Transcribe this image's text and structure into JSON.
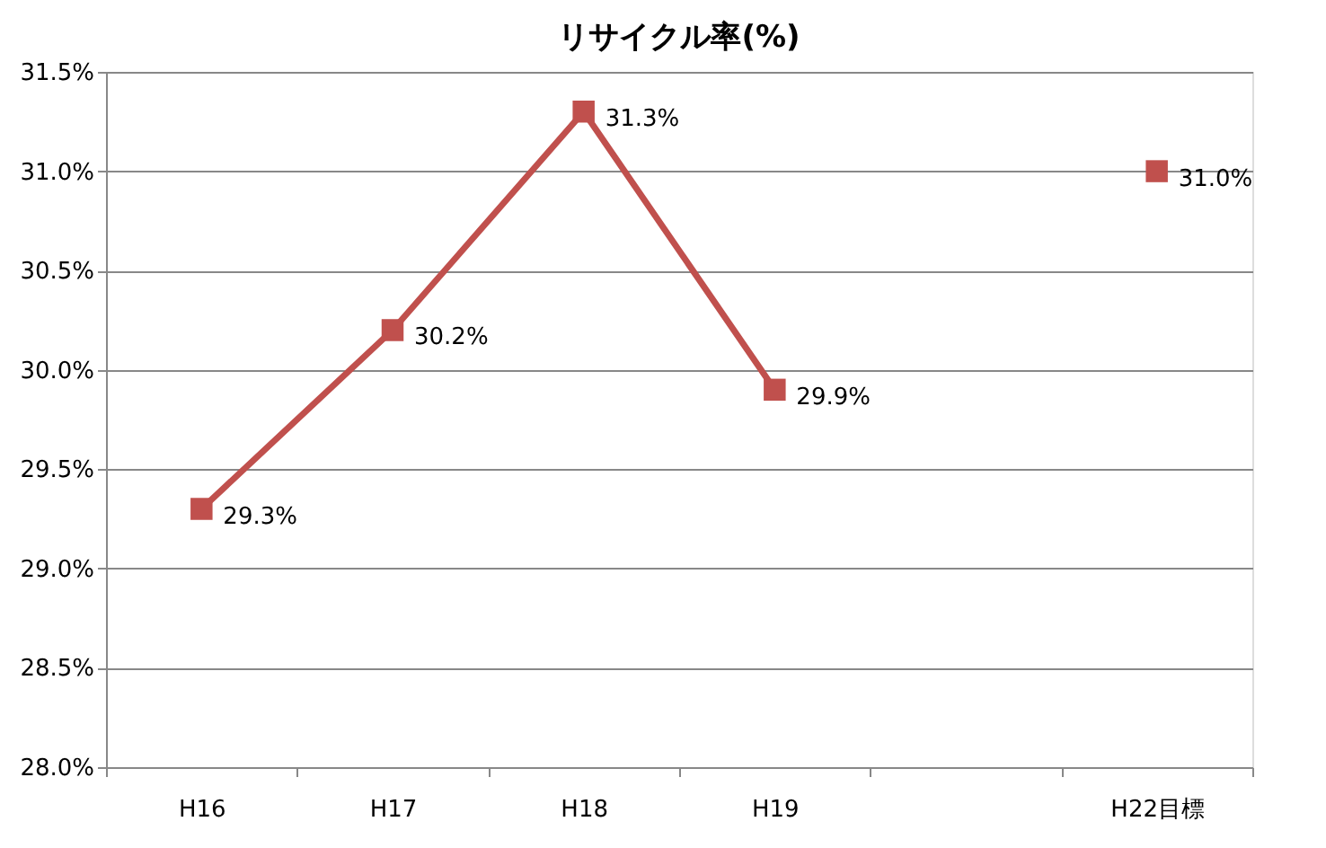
{
  "chart_data": {
    "type": "line",
    "title": "リサイクル率(%)",
    "categories": [
      "H16",
      "H17",
      "H18",
      "H19",
      null,
      "H22目標"
    ],
    "series": [
      {
        "color": "#c0504d",
        "values": [
          29.3,
          30.2,
          31.3,
          29.9,
          null,
          31.0
        ],
        "value_labels": [
          "29.3%",
          "30.2%",
          "31.3%",
          "29.9%",
          null,
          "31.0%"
        ]
      }
    ],
    "ylim": [
      28.0,
      31.5
    ],
    "yticks": [
      {
        "value": 28.0,
        "label": "28.0%"
      },
      {
        "value": 28.5,
        "label": "28.5%"
      },
      {
        "value": 29.0,
        "label": "29.0%"
      },
      {
        "value": 29.5,
        "label": "29.5%"
      },
      {
        "value": 30.0,
        "label": "30.0%"
      },
      {
        "value": 30.5,
        "label": "30.5%"
      },
      {
        "value": 31.0,
        "label": "31.0%"
      },
      {
        "value": 31.5,
        "label": "31.5%"
      }
    ],
    "grid": "y",
    "marker": "square",
    "line_style": "solid"
  }
}
